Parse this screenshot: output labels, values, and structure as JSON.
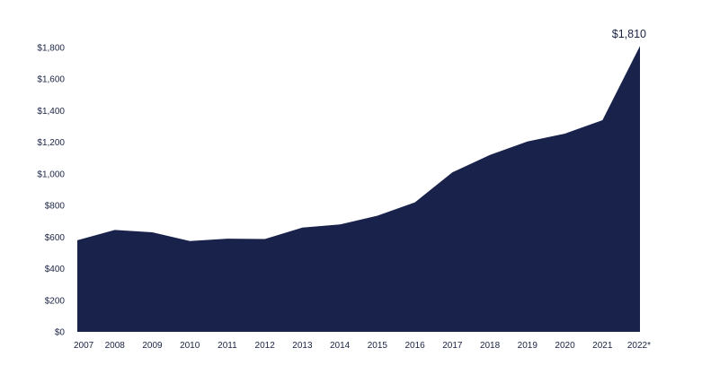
{
  "chart_data": {
    "type": "area",
    "title": "",
    "xlabel": "",
    "ylabel": "",
    "categories": [
      "2007",
      "2008",
      "2009",
      "2010",
      "2011",
      "2012",
      "2013",
      "2014",
      "2015",
      "2016",
      "2017",
      "2018",
      "2019",
      "2020",
      "2021",
      "2022*"
    ],
    "values": [
      580,
      645,
      630,
      575,
      590,
      588,
      660,
      680,
      735,
      820,
      1010,
      1120,
      1205,
      1255,
      1340,
      1810
    ],
    "y_ticks": [
      "$0",
      "$200",
      "$400",
      "$600",
      "$800",
      "$1,000",
      "$1,200",
      "$1,400",
      "$1,600",
      "$1,800"
    ],
    "ylim": [
      0,
      1800
    ],
    "grid": false,
    "fill_color": "#18224a",
    "annotations": [
      {
        "text": "$1,810",
        "category": "2022*",
        "value": 1810
      }
    ]
  }
}
